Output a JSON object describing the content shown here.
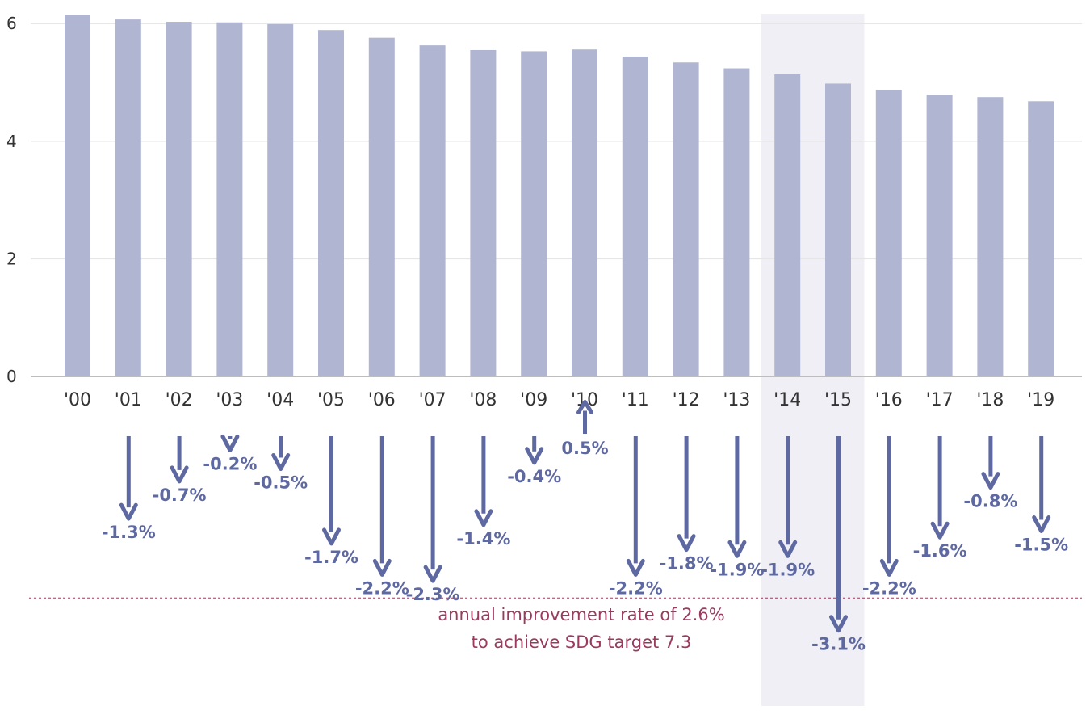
{
  "chart_data": {
    "type": "bar",
    "categories": [
      "'00",
      "'01",
      "'02",
      "'03",
      "'04",
      "'05",
      "'06",
      "'07",
      "'08",
      "'09",
      "'10",
      "'11",
      "'12",
      "'13",
      "'14",
      "'15",
      "'16",
      "'17",
      "'18",
      "'19"
    ],
    "values": [
      6.15,
      6.07,
      6.03,
      6.02,
      5.99,
      5.89,
      5.76,
      5.63,
      5.55,
      5.53,
      5.56,
      5.44,
      5.34,
      5.24,
      5.14,
      4.98,
      4.87,
      4.79,
      4.75,
      4.68
    ],
    "yticks": [
      0,
      2,
      4,
      6
    ],
    "ylim": [
      0,
      6.2
    ],
    "grid": true,
    "bar_color": "#b0b5d2",
    "highlight_color": "#efeff5",
    "highlight_categories": [
      "'14",
      "'15"
    ],
    "annual_change": {
      "color": "#5f69a1",
      "labels": [
        "-1.3%",
        "-0.7%",
        "-0.2%",
        "-0.5%",
        "-1.7%",
        "-2.2%",
        "-2.3%",
        "-1.4%",
        "-0.4%",
        "0.5%",
        "-2.2%",
        "-1.8%",
        "-1.9%",
        "-1.9%",
        "-3.1%",
        "-2.2%",
        "-1.6%",
        "-0.8%",
        "-1.5%"
      ],
      "values": [
        -1.3,
        -0.7,
        -0.2,
        -0.5,
        -1.7,
        -2.2,
        -2.3,
        -1.4,
        -0.4,
        0.5,
        -2.2,
        -1.8,
        -1.9,
        -1.9,
        -3.1,
        -2.2,
        -1.6,
        -0.8,
        -1.5
      ]
    },
    "target": {
      "rate": -2.6,
      "color": "#9b3a5e",
      "label_line1": "annual improvement rate of 2.6%",
      "label_line2": "to achieve SDG target 7.3"
    }
  }
}
